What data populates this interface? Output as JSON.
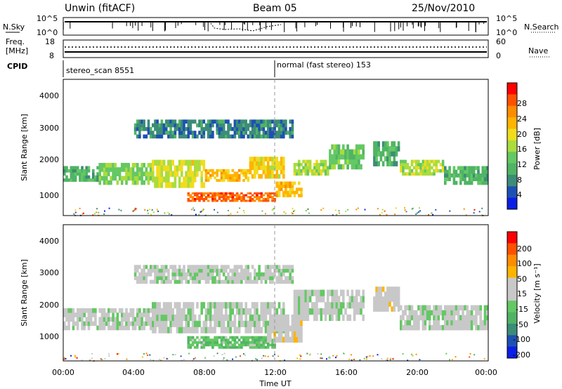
{
  "header": {
    "station": "Unwin (fitACF)",
    "beam": "Beam 05",
    "date": "25/Nov/2010"
  },
  "strip_nsky": {
    "left_label": "N.Sky",
    "left_ticks": [
      "10^5",
      "10^0"
    ],
    "right_label": "N.Search",
    "right_ticks": [
      "10^5",
      "10^0"
    ]
  },
  "strip_freq": {
    "left_label_1": "Freq.",
    "left_label_2": "[MHz]",
    "left_ticks": [
      "18",
      "8"
    ],
    "right_label": "Nave",
    "right_ticks": [
      "60",
      "0"
    ]
  },
  "cpid": {
    "label": "CPID",
    "mode_1": "stereo_scan 8551",
    "mode_2": "normal (fast stereo) 153"
  },
  "colors": {
    "power": [
      "#0a1ee6",
      "#1e50b4",
      "#3c8c78",
      "#50b464",
      "#64c864",
      "#aadc3c",
      "#f0dc1e",
      "#ffb400",
      "#ff8c00",
      "#ff5000",
      "#ff0000"
    ],
    "velocity": [
      "#0a1ee6",
      "#1e50b4",
      "#3c8c78",
      "#50b464",
      "#64c864",
      "#c8c8c8",
      "#c8c8c8",
      "#ffb400",
      "#ff8c00",
      "#ff5000",
      "#ff0000"
    ]
  },
  "chart_data": [
    {
      "type": "heatmap",
      "quantity": "power",
      "xlabel": "",
      "ylabel": "Slant Range [km]",
      "ylim": [
        200,
        4600
      ],
      "yticks": [
        "1000",
        "2000",
        "3000",
        "4000"
      ],
      "colorbar_label": "Power [dB]",
      "colorbar_ticks": [
        "4",
        "8",
        "12",
        "16",
        "20",
        "24",
        "28"
      ],
      "clim": [
        0,
        32
      ],
      "bands": [
        {
          "t": [
            0,
            2
          ],
          "r": [
            1300,
            1800
          ],
          "v": 10
        },
        {
          "t": [
            2,
            5
          ],
          "r": [
            1200,
            1900
          ],
          "v": 14
        },
        {
          "t": [
            5,
            8
          ],
          "r": [
            1100,
            2000
          ],
          "v": 18
        },
        {
          "t": [
            8,
            10.5
          ],
          "r": [
            1300,
            1700
          ],
          "v": 22
        },
        {
          "t": [
            10.5,
            12.5
          ],
          "r": [
            1400,
            2100
          ],
          "v": 20
        },
        {
          "t": [
            7,
            12
          ],
          "r": [
            650,
            950
          ],
          "v": 28
        },
        {
          "t": [
            12,
            13.5
          ],
          "r": [
            800,
            1300
          ],
          "v": 22
        },
        {
          "t": [
            13,
            15
          ],
          "r": [
            1500,
            2000
          ],
          "v": 16
        },
        {
          "t": [
            15,
            17
          ],
          "r": [
            1700,
            2500
          ],
          "v": 12
        },
        {
          "t": [
            17.5,
            19
          ],
          "r": [
            1800,
            2600
          ],
          "v": 10
        },
        {
          "t": [
            19,
            21.5
          ],
          "r": [
            1500,
            2000
          ],
          "v": 16
        },
        {
          "t": [
            21.5,
            24
          ],
          "r": [
            1200,
            1800
          ],
          "v": 10
        },
        {
          "t": [
            4,
            13
          ],
          "r": [
            2700,
            3300
          ],
          "v": 6
        }
      ]
    },
    {
      "type": "heatmap",
      "quantity": "velocity",
      "xlabel": "Time UT",
      "ylabel": "Slant Range [km]",
      "ylim": [
        200,
        4600
      ],
      "yticks": [
        "1000",
        "2000",
        "3000",
        "4000"
      ],
      "colorbar_label": "Velocity [m s⁻¹]",
      "colorbar_ticks": [
        "200",
        "100",
        "50",
        "15",
        "-15",
        "-50",
        "-100",
        "-200"
      ],
      "clim": [
        -250,
        250
      ],
      "bands": [
        {
          "t": [
            0,
            5
          ],
          "r": [
            1200,
            1900
          ],
          "v": 0
        },
        {
          "t": [
            5,
            12.5
          ],
          "r": [
            1100,
            2100
          ],
          "v": 0
        },
        {
          "t": [
            7,
            12
          ],
          "r": [
            600,
            1000
          ],
          "v": -60
        },
        {
          "t": [
            11.5,
            13.5
          ],
          "r": [
            800,
            1700
          ],
          "v": 40
        },
        {
          "t": [
            13,
            17
          ],
          "r": [
            1500,
            2500
          ],
          "v": 0
        },
        {
          "t": [
            17.5,
            19
          ],
          "r": [
            1800,
            2600
          ],
          "v": 35
        },
        {
          "t": [
            19,
            24
          ],
          "r": [
            1200,
            2000
          ],
          "v": 0
        },
        {
          "t": [
            4,
            13
          ],
          "r": [
            2700,
            3300
          ],
          "v": 0
        }
      ],
      "xticks": [
        "00:00",
        "04:00",
        "08:00",
        "12:00",
        "16:00",
        "20:00",
        "00:00"
      ],
      "xlim": [
        0,
        24
      ]
    }
  ]
}
